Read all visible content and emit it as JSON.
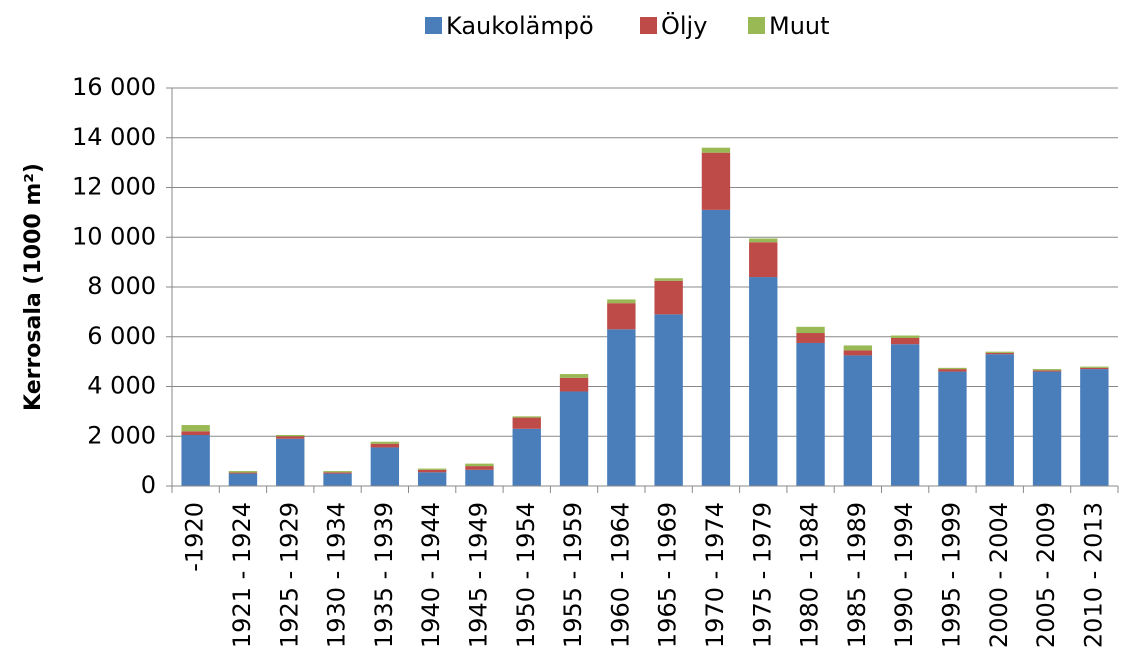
{
  "chart_data": {
    "type": "stacked_bar",
    "y_label": "Kerrosala  (1000 m²)",
    "categories": [
      "-1920",
      "1921 - 1924",
      "1925 - 1929",
      "1930 - 1934",
      "1935 - 1939",
      "1940 - 1944",
      "1945 - 1949",
      "1950 - 1954",
      "1955 - 1959",
      "1960 - 1964",
      "1965 - 1969",
      "1970 - 1974",
      "1975 - 1979",
      "1980 - 1984",
      "1985 - 1989",
      "1990 - 1994",
      "1995 - 1999",
      "2000 - 2004",
      "2005 - 2009",
      "2010 - 2013"
    ],
    "series": [
      {
        "name": "Kaukolämpö",
        "color": "#4a7ebb",
        "values": [
          2050,
          500,
          1900,
          500,
          1550,
          550,
          650,
          2300,
          3800,
          6300,
          6900,
          11100,
          8400,
          5750,
          5250,
          5700,
          4600,
          5300,
          4600,
          4700
        ]
      },
      {
        "name": "Öljy",
        "color": "#be4b48",
        "values": [
          150,
          40,
          100,
          50,
          150,
          100,
          150,
          450,
          550,
          1050,
          1350,
          2300,
          1400,
          400,
          200,
          250,
          100,
          50,
          50,
          50
        ]
      },
      {
        "name": "Muut",
        "color": "#98b954",
        "values": [
          250,
          60,
          50,
          50,
          80,
          50,
          100,
          50,
          150,
          150,
          100,
          200,
          150,
          250,
          200,
          100,
          50,
          50,
          50,
          50
        ]
      }
    ],
    "ylim": [
      0,
      16000
    ],
    "yticks": [
      0,
      {
        "value": 2000,
        "label": "2 000"
      },
      {
        "value": 4000,
        "label": "4 000"
      },
      {
        "value": 6000,
        "label": "6 000"
      },
      {
        "value": 8000,
        "label": "8 000"
      },
      {
        "value": 10000,
        "label": "10 000"
      },
      {
        "value": 12000,
        "label": "12 000"
      },
      {
        "value": 14000,
        "label": "14 000"
      },
      {
        "value": 16000,
        "label": "16 000"
      }
    ],
    "grid": true,
    "legend": "top"
  }
}
